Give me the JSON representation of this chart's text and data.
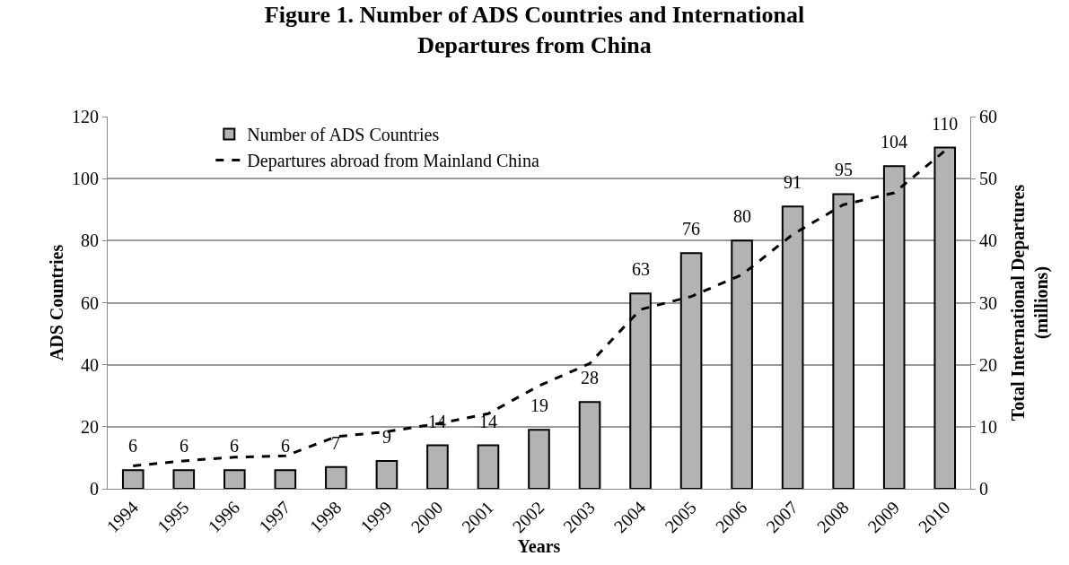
{
  "chart_data": {
    "type": "bar",
    "title": "Figure 1. Number of ADS Countries and International Departures from China",
    "xlabel": "Years",
    "ylabel": "ADS Countries",
    "y2label": "Total International Departures (millions)",
    "categories": [
      "1994",
      "1995",
      "1996",
      "1997",
      "1998",
      "1999",
      "2000",
      "2001",
      "2002",
      "2003",
      "2004",
      "2005",
      "2006",
      "2007",
      "2008",
      "2009",
      "2010"
    ],
    "series": [
      {
        "name": "Number of ADS Countries",
        "color": "#b3b3b3",
        "values": [
          6,
          6,
          6,
          6,
          7,
          9,
          14,
          14,
          19,
          28,
          63,
          76,
          80,
          91,
          95,
          104,
          110
        ],
        "value_labels": [
          "6",
          "6",
          "6",
          "6",
          "7",
          "9",
          "14",
          "14",
          "19",
          "28",
          "63",
          "76",
          "80",
          "91",
          "95",
          "104",
          "110"
        ]
      },
      {
        "name": "Departures abroad from Mainland China",
        "type": "line",
        "axis": "y2",
        "color": "#000000",
        "line_style": "dashed",
        "values": [
          3.7,
          4.5,
          5.1,
          5.3,
          8.4,
          9.2,
          10.5,
          12.1,
          16.6,
          20.2,
          28.9,
          31.0,
          34.5,
          41.0,
          45.8,
          47.7,
          54.5
        ]
      }
    ],
    "ylim": [
      0,
      120
    ],
    "yticks": [
      0,
      20,
      40,
      60,
      80,
      100,
      120
    ],
    "y2lim": [
      0,
      60
    ],
    "y2ticks": [
      0,
      10,
      20,
      30,
      40,
      50,
      60
    ],
    "grid": "y",
    "legend": "top left",
    "marker": "none"
  }
}
